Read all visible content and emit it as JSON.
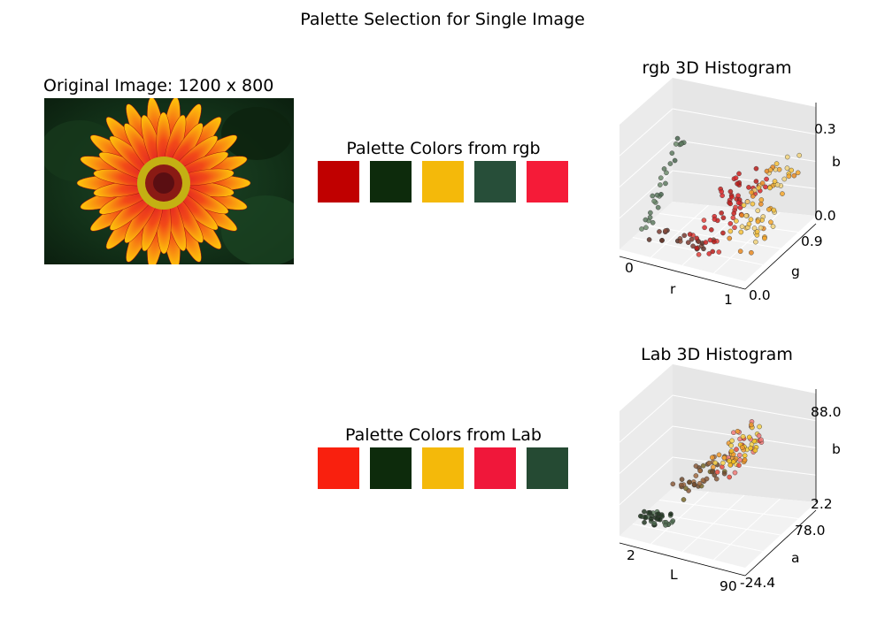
{
  "suptitle": "Palette Selection for Single Image",
  "image_panel": {
    "title": "Original Image: 1200 x 800"
  },
  "palettes": [
    {
      "title": "Palette Colors from rgb",
      "colors": [
        "#c00000",
        "#0d2b0c",
        "#f4b90a",
        "#274e39",
        "#f51b38"
      ]
    },
    {
      "title": "Palette Colors from Lab",
      "colors": [
        "#f9200e",
        "#0d2b0c",
        "#f4b90a",
        "#f0173a",
        "#254a33"
      ]
    }
  ],
  "chart_data": [
    {
      "type": "scatter",
      "title": "rgb 3D Histogram",
      "xlabel": "r",
      "ylabel": "g",
      "zlabel": "b",
      "x_ticks": [
        "0",
        "1"
      ],
      "y_ticks": [
        "0.0",
        "0.9"
      ],
      "z_ticks": [
        "0.0",
        "0.3"
      ]
    },
    {
      "type": "scatter",
      "title": "Lab 3D Histogram",
      "xlabel": "L",
      "ylabel": "a",
      "zlabel": "b",
      "x_ticks": [
        "2",
        "90"
      ],
      "y_ticks": [
        "-24.4",
        "78.0"
      ],
      "z_ticks": [
        "2.2",
        "88.0"
      ]
    }
  ]
}
